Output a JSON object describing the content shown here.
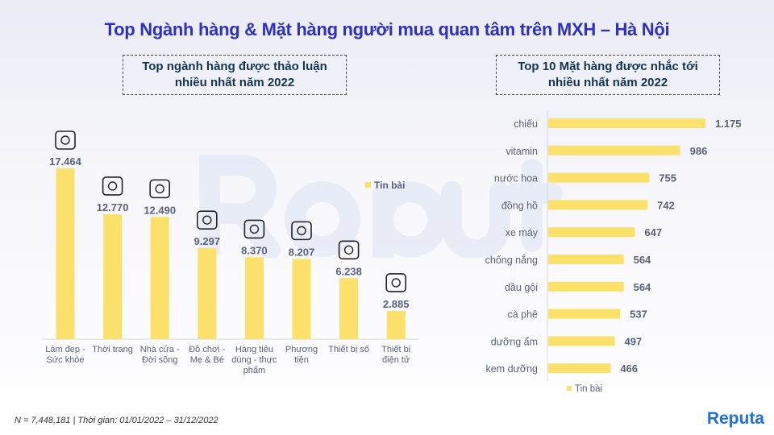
{
  "title": "Top Ngành hàng & Mặt hàng người mua quan tâm trên MXH – Hà Nội",
  "left_box": [
    "Top ngành hàng được thảo luận",
    "nhiều nhất năm 2022"
  ],
  "right_box": [
    "Top 10 Mặt hàng được nhắc tới",
    "nhiều nhất năm 2022"
  ],
  "footnote": "N = 7,448,181 | Thời gian: 01/01/2022 – 31/12/2022",
  "logo": "Reputa",
  "colors": {
    "bar": "#fbe06c",
    "title": "#2f2fc4",
    "label": "#5a6179",
    "brand": "#1f6fe0"
  },
  "chart_data": [
    {
      "type": "bar",
      "orientation": "vertical",
      "legend": "Tin bài",
      "legend_position": "right",
      "categories": [
        [
          "Làm đẹp -",
          "Sức khỏe"
        ],
        [
          "Thời trang"
        ],
        [
          "Nhà cửa -",
          "Đời sống"
        ],
        [
          "Đồ chơi -",
          "Mẹ & Bé"
        ],
        [
          "Hàng tiêu",
          "dùng - thực",
          "phẩm"
        ],
        [
          "Phương",
          "tiện"
        ],
        [
          "Thiết bị số"
        ],
        [
          "Thiết bị",
          "điện tử"
        ]
      ],
      "icons": [
        "cosmetics-icon",
        "fashion-icon",
        "house-icon",
        "mother-baby-icon",
        "groceries-icon",
        "car-icon",
        "smart-device-icon",
        "electronics-icon"
      ],
      "values": [
        17464,
        12770,
        12490,
        9297,
        8370,
        8207,
        6238,
        2885
      ],
      "labels": [
        "17.464",
        "12.770",
        "12.490",
        "9.297",
        "8.370",
        "8.207",
        "6.238",
        "2.885"
      ],
      "grid": false
    },
    {
      "type": "bar",
      "orientation": "horizontal",
      "legend": "Tin bài",
      "legend_position": "bottom",
      "categories": [
        "chiếu",
        "vitamin",
        "nước hoa",
        "đồng hồ",
        "xe máy",
        "chống nắng",
        "dầu gội",
        "cà phê",
        "dưỡng ẩm",
        "kem dưỡng"
      ],
      "values": [
        1175,
        986,
        755,
        742,
        647,
        564,
        564,
        537,
        497,
        466
      ],
      "labels": [
        "1.175",
        "986",
        "755",
        "742",
        "647",
        "564",
        "564",
        "537",
        "497",
        "466"
      ],
      "grid": false
    }
  ]
}
